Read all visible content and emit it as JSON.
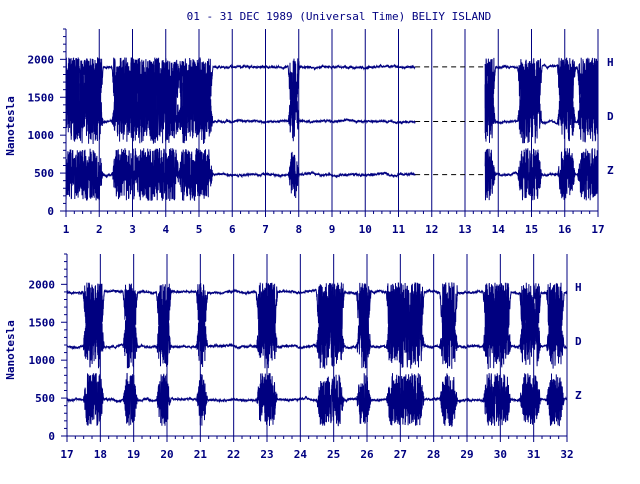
{
  "chart_data": [
    {
      "type": "line",
      "title": "01 - 31 DEC 1989 (Universal Time) BELIY ISLAND",
      "ylabel": "Nanotesla",
      "xlabel": "",
      "x_ticks": [
        "1",
        "2",
        "3",
        "4",
        "5",
        "6",
        "7",
        "8",
        "9",
        "10",
        "11",
        "12",
        "13",
        "14",
        "15",
        "16",
        "17"
      ],
      "xlim": [
        1,
        17
      ],
      "ylim": [
        0,
        2400
      ],
      "y_ticks": [
        "0",
        "500",
        "1000",
        "1500",
        "2000"
      ],
      "grid": "vertical lines at each day",
      "gap_style": "dashed line at baseline across missing data",
      "data_gap": [
        11.5,
        13.6
      ],
      "series": [
        {
          "name": "H",
          "baseline": 1900,
          "dips_to": 1150
        },
        {
          "name": "D",
          "baseline": 1180,
          "peaks_to": 1950
        },
        {
          "name": "Z",
          "baseline": 480,
          "range": [
            100,
            900
          ]
        }
      ],
      "activity_intervals": [
        [
          1.0,
          2.0
        ],
        [
          2.5,
          3.1
        ],
        [
          3.2,
          4.3
        ],
        [
          4.5,
          5.3
        ],
        [
          7.8,
          7.9
        ],
        [
          13.6,
          13.8
        ],
        [
          14.7,
          15.2
        ],
        [
          15.9,
          16.2
        ],
        [
          16.5,
          17.0
        ]
      ]
    },
    {
      "type": "line",
      "title": "",
      "ylabel": "Nanotesla",
      "xlabel": "",
      "x_ticks": [
        "17",
        "18",
        "19",
        "20",
        "21",
        "22",
        "23",
        "24",
        "25",
        "26",
        "27",
        "28",
        "29",
        "30",
        "31",
        "32"
      ],
      "xlim": [
        17,
        32
      ],
      "ylim": [
        0,
        2400
      ],
      "y_ticks": [
        "0",
        "500",
        "1000",
        "1500",
        "2000"
      ],
      "grid": "vertical lines at each day",
      "series": [
        {
          "name": "H",
          "baseline": 1900,
          "dips_to": 1150
        },
        {
          "name": "D",
          "baseline": 1180,
          "peaks_to": 1950
        },
        {
          "name": "Z",
          "baseline": 480,
          "range": [
            0,
            950
          ]
        }
      ],
      "activity_intervals": [
        [
          17.6,
          18.0
        ],
        [
          18.8,
          19.0
        ],
        [
          19.8,
          20.0
        ],
        [
          21.0,
          21.1
        ],
        [
          22.8,
          23.2
        ],
        [
          24.6,
          25.2
        ],
        [
          25.8,
          26.0
        ],
        [
          26.7,
          27.6
        ],
        [
          28.3,
          28.6
        ],
        [
          29.6,
          30.2
        ],
        [
          30.7,
          31.1
        ],
        [
          31.5,
          31.8
        ]
      ]
    }
  ]
}
